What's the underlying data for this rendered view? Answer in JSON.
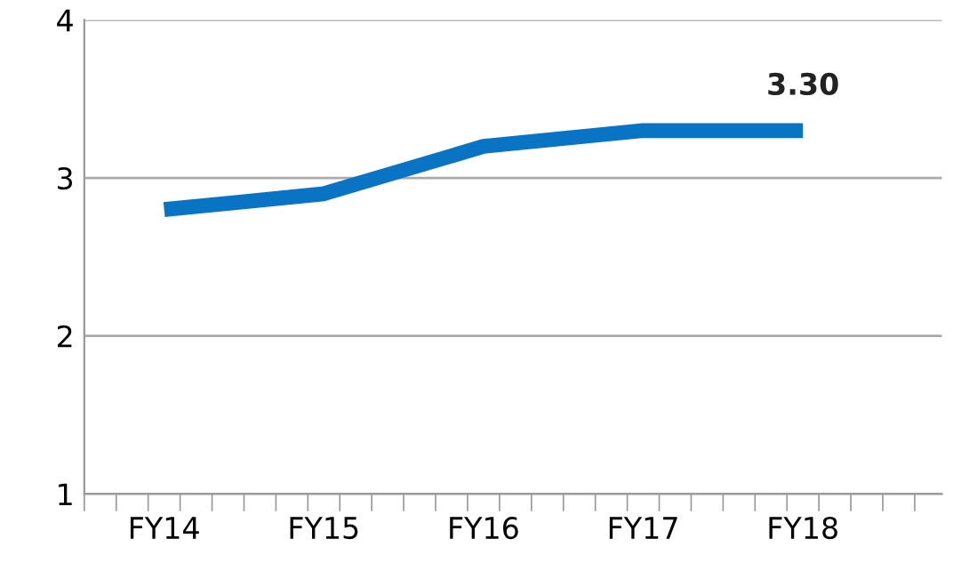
{
  "chart_data": {
    "type": "line",
    "categories": [
      "FY14",
      "FY15",
      "FY16",
      "FY17",
      "FY18"
    ],
    "series": [
      {
        "color": "#0a74c4",
        "values": [
          2.8,
          2.9,
          3.2,
          3.3,
          3.3
        ],
        "value_labels": [
          null,
          null,
          null,
          null,
          "3.30"
        ]
      }
    ],
    "ylim": [
      1,
      4
    ],
    "yticks": [
      1,
      2,
      3,
      4
    ],
    "grid": "y",
    "legend": false,
    "marker": "none",
    "line_style": "solid"
  }
}
